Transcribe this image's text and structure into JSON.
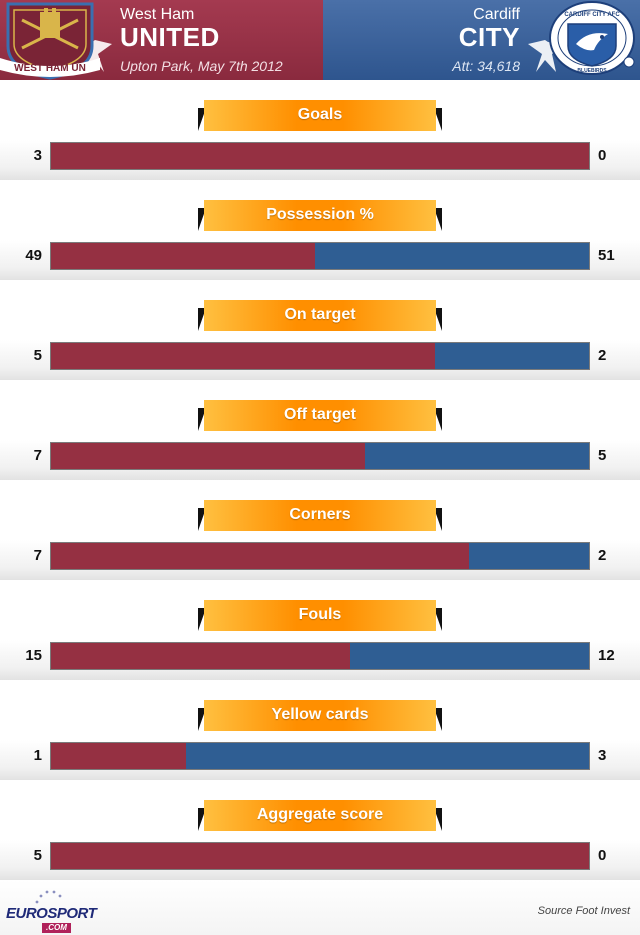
{
  "header": {
    "home": {
      "name": "West Ham",
      "name_big": "UNITED",
      "venue_date": "Upton Park, May 7th 2012",
      "crest_text": "WEST HAM UN",
      "color": "#953042"
    },
    "away": {
      "name": "Cardiff",
      "name_big": "CITY",
      "attendance": "Att: 34,618",
      "crest_text": "CARDIFF CITY AFC",
      "crest_sub": "BLUEBIRDS",
      "color": "#2f5e93"
    }
  },
  "chart_data": {
    "type": "bar",
    "orientation": "horizontal-stacked-percent",
    "stats": [
      {
        "label": "Goals",
        "home": 3,
        "away": 0,
        "home_display": "3",
        "away_display": "0"
      },
      {
        "label": "Possession %",
        "home": 49,
        "away": 51,
        "home_display": "49",
        "away_display": "51"
      },
      {
        "label": "On target",
        "home": 5,
        "away": 2,
        "home_display": "5",
        "away_display": "2"
      },
      {
        "label": "Off target",
        "home": 7,
        "away": 5,
        "home_display": "7",
        "away_display": "5"
      },
      {
        "label": "Corners",
        "home": 7,
        "away": 2,
        "home_display": "7",
        "away_display": "2"
      },
      {
        "label": "Fouls",
        "home": 15,
        "away": 12,
        "home_display": "15",
        "away_display": "12"
      },
      {
        "label": "Yellow cards",
        "home": 1,
        "away": 3,
        "home_display": "1",
        "away_display": "3"
      },
      {
        "label": "Aggregate score",
        "home": 5,
        "away": 0,
        "home_display": "5",
        "away_display": "0"
      }
    ]
  },
  "footer": {
    "logo_text_a": "EURO",
    "logo_text_b": "SPORT",
    "logo_dot": ".COM",
    "source": "Source Foot Invest"
  }
}
